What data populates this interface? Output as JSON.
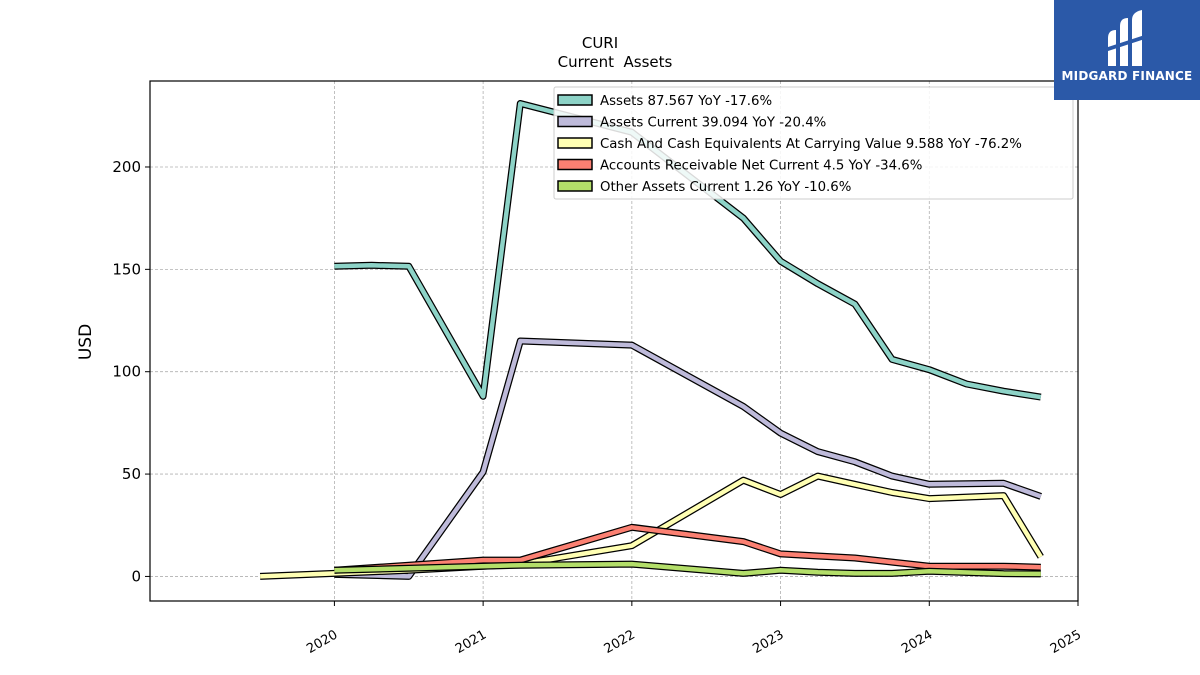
{
  "chart_data": {
    "type": "line",
    "title": "CURI",
    "subtitle": "Current  Assets",
    "ylabel": "USD",
    "xlabel": "",
    "ylim": [
      -12,
      242
    ],
    "xlim": [
      2018.76,
      2025.0
    ],
    "grid": true,
    "legend_position": "top-right",
    "x_ticks": [
      2020,
      2021,
      2022,
      2023,
      2024,
      2025
    ],
    "x_tick_labels": [
      "2020",
      "2021",
      "2022",
      "2023",
      "2024",
      "2025"
    ],
    "y_ticks": [
      0,
      50,
      100,
      150,
      200
    ],
    "y_tick_labels": [
      "0",
      "50",
      "100",
      "150",
      "200"
    ],
    "series": [
      {
        "name": "Assets  87.567 YoY -17.6%",
        "color": "#8dd3c7",
        "points": [
          [
            2020.0,
            151.5
          ],
          [
            2020.25,
            152
          ],
          [
            2020.5,
            151.5
          ],
          [
            2021.0,
            88
          ],
          [
            2021.25,
            231
          ],
          [
            2022.0,
            217
          ],
          [
            2022.75,
            175
          ],
          [
            2023.0,
            154
          ],
          [
            2023.25,
            143
          ],
          [
            2023.5,
            133
          ],
          [
            2023.75,
            106
          ],
          [
            2024.0,
            101
          ],
          [
            2024.25,
            94
          ],
          [
            2024.5,
            90.5
          ],
          [
            2024.75,
            87.6
          ]
        ]
      },
      {
        "name": "Assets Current  39.094 YoY -20.4%",
        "color": "#bebada",
        "points": [
          [
            2020.0,
            1
          ],
          [
            2020.5,
            0
          ],
          [
            2021.0,
            51
          ],
          [
            2021.25,
            115
          ],
          [
            2022.0,
            113
          ],
          [
            2022.75,
            83
          ],
          [
            2023.0,
            70
          ],
          [
            2023.25,
            61
          ],
          [
            2023.5,
            56
          ],
          [
            2023.75,
            49
          ],
          [
            2024.0,
            45
          ],
          [
            2024.5,
            45.5
          ],
          [
            2024.75,
            39.1
          ]
        ]
      },
      {
        "name": "Cash And Cash Equivalents At Carrying Value  9.588 YoY -76.2%",
        "color": "#ffffb3",
        "points": [
          [
            2019.5,
            0
          ],
          [
            2020.0,
            1.5
          ],
          [
            2020.5,
            3
          ],
          [
            2021.0,
            5
          ],
          [
            2021.25,
            6
          ],
          [
            2022.0,
            15
          ],
          [
            2022.75,
            47
          ],
          [
            2023.0,
            40
          ],
          [
            2023.25,
            49
          ],
          [
            2023.5,
            45
          ],
          [
            2023.75,
            41
          ],
          [
            2024.0,
            38
          ],
          [
            2024.5,
            39.5
          ],
          [
            2024.75,
            9.6
          ]
        ]
      },
      {
        "name": "Accounts Receivable Net Current  4.5 YoY -34.6%",
        "color": "#fb8072",
        "points": [
          [
            2020.0,
            3
          ],
          [
            2020.5,
            5.5
          ],
          [
            2021.0,
            8
          ],
          [
            2021.25,
            8
          ],
          [
            2022.0,
            24
          ],
          [
            2022.75,
            17
          ],
          [
            2023.0,
            11
          ],
          [
            2023.25,
            10
          ],
          [
            2023.5,
            9
          ],
          [
            2023.75,
            7
          ],
          [
            2024.0,
            5
          ],
          [
            2024.5,
            5
          ],
          [
            2024.75,
            4.5
          ]
        ]
      },
      {
        "name": "Other Assets Current  1.26 YoY -10.6%",
        "color": "#b3de69",
        "points": [
          [
            2020.0,
            3
          ],
          [
            2021.25,
            5.5
          ],
          [
            2022.0,
            6
          ],
          [
            2022.75,
            1.5
          ],
          [
            2023.0,
            3
          ],
          [
            2023.25,
            2
          ],
          [
            2023.5,
            1.5
          ],
          [
            2023.75,
            1.5
          ],
          [
            2024.0,
            2.5
          ],
          [
            2024.5,
            1.4
          ],
          [
            2024.75,
            1.26
          ]
        ]
      }
    ]
  },
  "logo": {
    "text": "MIDGARD FINANCE",
    "color": "#2b59a8"
  }
}
